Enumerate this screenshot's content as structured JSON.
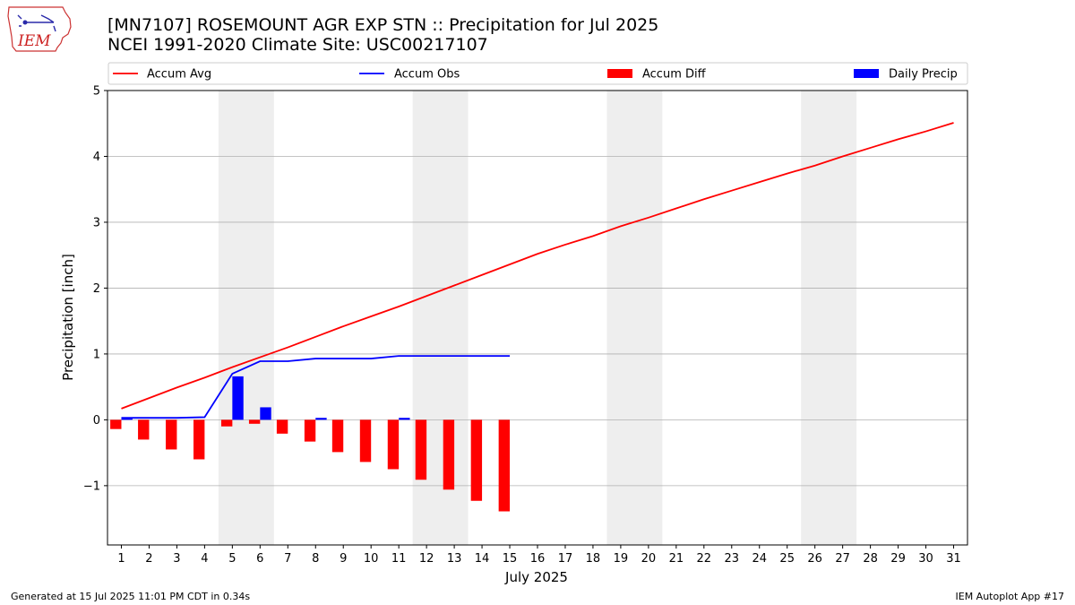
{
  "header": {
    "title_line1": "[MN7107] ROSEMOUNT AGR EXP STN :: Precipitation for Jul 2025",
    "title_line2": "NCEI 1991-2020 Climate Site: USC00217107",
    "logo_text": "IEM"
  },
  "footer": {
    "generated": "Generated at 15 Jul 2025 11:01 PM CDT in 0.34s",
    "app": "IEM Autoplot App #17"
  },
  "colors": {
    "accum_avg": "#ff0000",
    "accum_obs": "#0000ff",
    "accum_diff": "#ff0000",
    "daily_precip": "#0000ff",
    "weekend_shade": "#eeeeee",
    "grid": "#b0b0b0"
  },
  "chart_data": {
    "type": "line",
    "title": "[MN7107] ROSEMOUNT AGR EXP STN :: Precipitation for Jul 2025",
    "subtitle": "NCEI 1991-2020 Climate Site: USC00217107",
    "xlabel": "July 2025",
    "ylabel": "Precipitation [inch]",
    "xlim": [
      0.5,
      31.5
    ],
    "ylim": [
      -1.9,
      5
    ],
    "x": [
      1,
      2,
      3,
      4,
      5,
      6,
      7,
      8,
      9,
      10,
      11,
      12,
      13,
      14,
      15,
      16,
      17,
      18,
      19,
      20,
      21,
      22,
      23,
      24,
      25,
      26,
      27,
      28,
      29,
      30,
      31
    ],
    "x_tick_labels": [
      "1",
      "2",
      "3",
      "4",
      "5",
      "6",
      "7",
      "8",
      "9",
      "10",
      "11",
      "12",
      "13",
      "14",
      "15",
      "16",
      "17",
      "18",
      "19",
      "20",
      "21",
      "22",
      "23",
      "24",
      "25",
      "26",
      "27",
      "28",
      "29",
      "30",
      "31"
    ],
    "y_ticks": [
      -1,
      0,
      1,
      2,
      3,
      4,
      5
    ],
    "y_tick_labels": [
      "−1",
      "0",
      "1",
      "2",
      "3",
      "4",
      "5"
    ],
    "grid": "y",
    "legend_position": "top",
    "weekend_shading": [
      [
        4.5,
        6.5
      ],
      [
        11.5,
        13.5
      ],
      [
        18.5,
        20.5
      ],
      [
        25.5,
        27.5
      ]
    ],
    "series": [
      {
        "name": "Accum Avg",
        "kind": "line",
        "color": "#ff0000",
        "x": [
          1,
          2,
          3,
          4,
          5,
          6,
          7,
          8,
          9,
          10,
          11,
          12,
          13,
          14,
          15,
          16,
          17,
          18,
          19,
          20,
          21,
          22,
          23,
          24,
          25,
          26,
          27,
          28,
          29,
          30,
          31
        ],
        "values": [
          0.17,
          0.33,
          0.49,
          0.64,
          0.8,
          0.95,
          1.1,
          1.26,
          1.42,
          1.57,
          1.72,
          1.88,
          2.04,
          2.2,
          2.36,
          2.52,
          2.66,
          2.79,
          2.94,
          3.07,
          3.21,
          3.35,
          3.48,
          3.61,
          3.74,
          3.86,
          4.0,
          4.13,
          4.26,
          4.38,
          4.51
        ]
      },
      {
        "name": "Accum Obs",
        "kind": "line",
        "color": "#0000ff",
        "x": [
          1,
          2,
          3,
          4,
          5,
          6,
          7,
          8,
          9,
          10,
          11,
          12,
          13,
          14,
          15
        ],
        "values": [
          0.03,
          0.03,
          0.03,
          0.04,
          0.7,
          0.89,
          0.89,
          0.93,
          0.93,
          0.93,
          0.97,
          0.97,
          0.97,
          0.97,
          0.97
        ]
      },
      {
        "name": "Accum Diff",
        "kind": "bar",
        "color": "#ff0000",
        "x": [
          1,
          2,
          3,
          4,
          5,
          6,
          7,
          8,
          9,
          10,
          11,
          12,
          13,
          14,
          15
        ],
        "values": [
          -0.14,
          -0.3,
          -0.45,
          -0.6,
          -0.1,
          -0.06,
          -0.21,
          -0.33,
          -0.49,
          -0.64,
          -0.75,
          -0.91,
          -1.06,
          -1.23,
          -1.39
        ]
      },
      {
        "name": "Daily Precip",
        "kind": "bar",
        "color": "#0000ff",
        "x": [
          1,
          2,
          3,
          4,
          5,
          6,
          7,
          8,
          9,
          10,
          11,
          12,
          13,
          14,
          15
        ],
        "values": [
          0.03,
          0.0,
          0.0,
          0.0,
          0.66,
          0.19,
          0.0,
          0.03,
          0.0,
          0.0,
          0.03,
          0.0,
          0.0,
          0.0,
          0.0
        ]
      }
    ]
  }
}
